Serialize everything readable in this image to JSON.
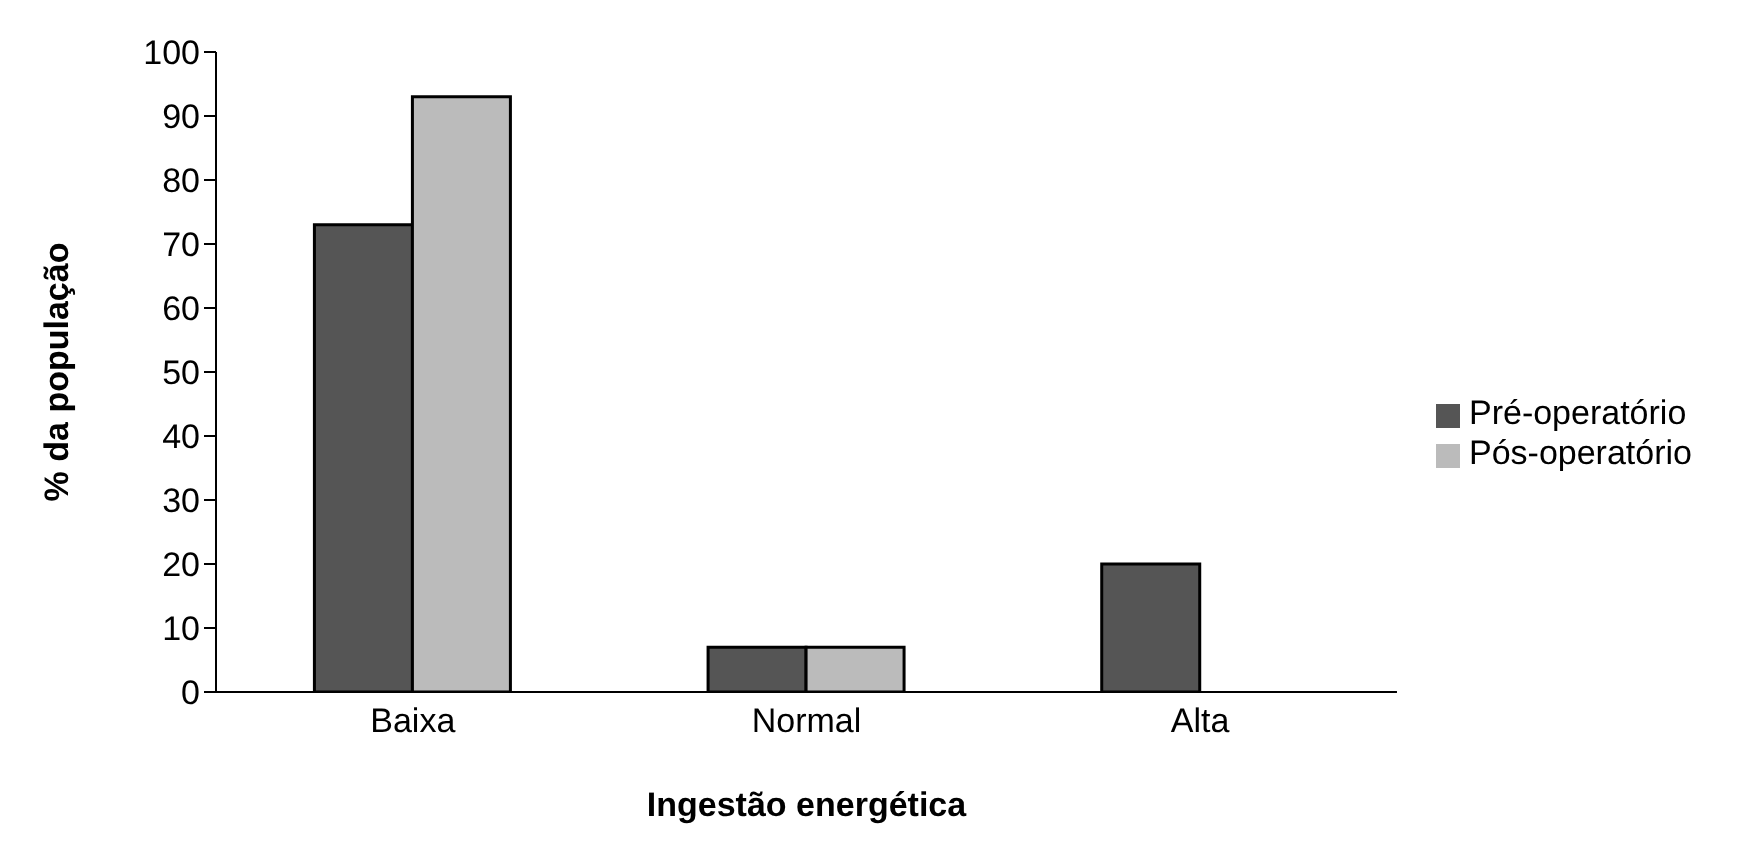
{
  "chart_data": {
    "type": "bar",
    "xlabel": "Ingestão energética",
    "ylabel": "% da população",
    "categories": [
      "Baixa",
      "Normal",
      "Alta"
    ],
    "series": [
      {
        "name": "Pré-operatório",
        "color": "#555555",
        "values": [
          73,
          7,
          20
        ]
      },
      {
        "name": "Pós-operatório",
        "color": "#bbbbbb",
        "values": [
          93,
          7,
          0
        ]
      }
    ],
    "ylim": [
      0,
      100
    ],
    "yticks": [
      0,
      10,
      20,
      30,
      40,
      50,
      60,
      70,
      80,
      90,
      100
    ],
    "grid": false,
    "legend": "right"
  }
}
